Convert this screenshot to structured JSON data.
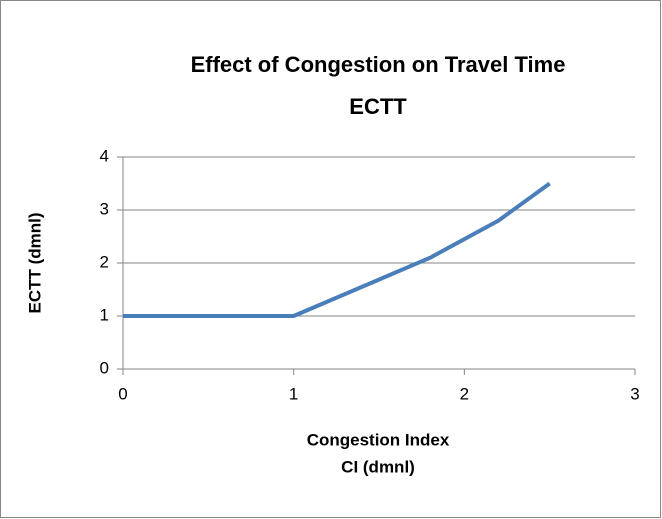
{
  "chart_data": {
    "type": "line",
    "title": "Effect of Congestion on Travel Time",
    "subtitle": "ECTT",
    "xlabel": [
      "Congestion Index",
      "CI (dmnl)"
    ],
    "ylabel": "ECTT (dmnl)",
    "x": [
      0,
      1,
      1.8,
      2.2,
      2.5
    ],
    "series": [
      {
        "name": "ECTT",
        "color": "#4a7ebb",
        "values": [
          1,
          1,
          2.1,
          2.8,
          3.5
        ]
      }
    ],
    "xlim": [
      0,
      3
    ],
    "xticks": [
      0,
      1,
      2,
      3
    ],
    "ylim": [
      0,
      4
    ],
    "yticks": [
      0,
      1,
      2,
      3,
      4
    ],
    "grid": true
  }
}
